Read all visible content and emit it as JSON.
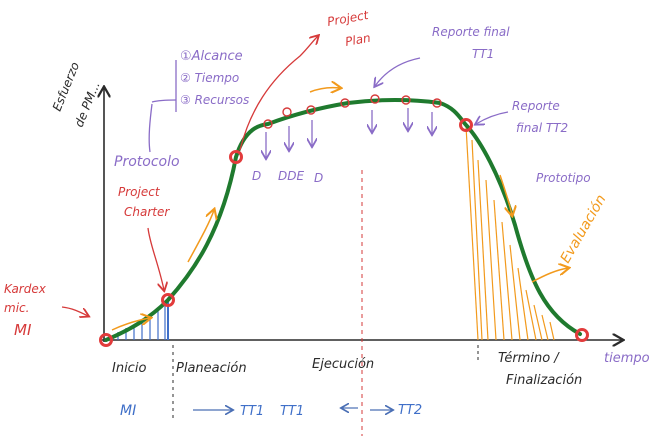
{
  "axes": {
    "y_label_line1": "Esfuerzo",
    "y_label_line2": "de PM...",
    "x_label": "tiempo"
  },
  "phases": {
    "inicio": "Inicio",
    "planeacion": "Planeación",
    "ejecucion": "Ejecución",
    "termino_line1": "Término /",
    "termino_line2": "Finalización"
  },
  "bottom_flow": {
    "mi": "MI",
    "arrow1": "→",
    "tt1_a": "TT1",
    "tt1_b": "TT1",
    "arrow2": "←",
    "arrow3": "→",
    "tt2": "TT2"
  },
  "annotations": {
    "kardex_line1": "Kardex",
    "kardex_line2": "mic.",
    "kardex_line3": "MI",
    "protocolo": "Protocolo",
    "project_charter_line1": "Project",
    "project_charter_line2": "Charter",
    "alcance": "①Alcance",
    "tiempo": "② Tiempo",
    "recursos": "③ Recursos",
    "project_plan_line1": "Project",
    "project_plan_line2": "Plan",
    "reporte_final_tt1_line1": "Reporte final",
    "reporte_final_tt1_line2": "TT1",
    "reporte_final_tt2_line1": "Reporte",
    "reporte_final_tt2_line2": "final TT2",
    "prototipo": "Prototipo",
    "evaluacion": "Evaluación",
    "deliverable_1": "D",
    "deliverable_2": "DDE",
    "deliverable_3": "D"
  },
  "colors": {
    "curve": "#1f7a2e",
    "milestone": "#e23b3b",
    "ink": "#2b2b2b",
    "red_note": "#d63a3a",
    "purple_note": "#8a6cc7",
    "blue_note": "#3f6fc8",
    "orange_note": "#f29a1d"
  }
}
